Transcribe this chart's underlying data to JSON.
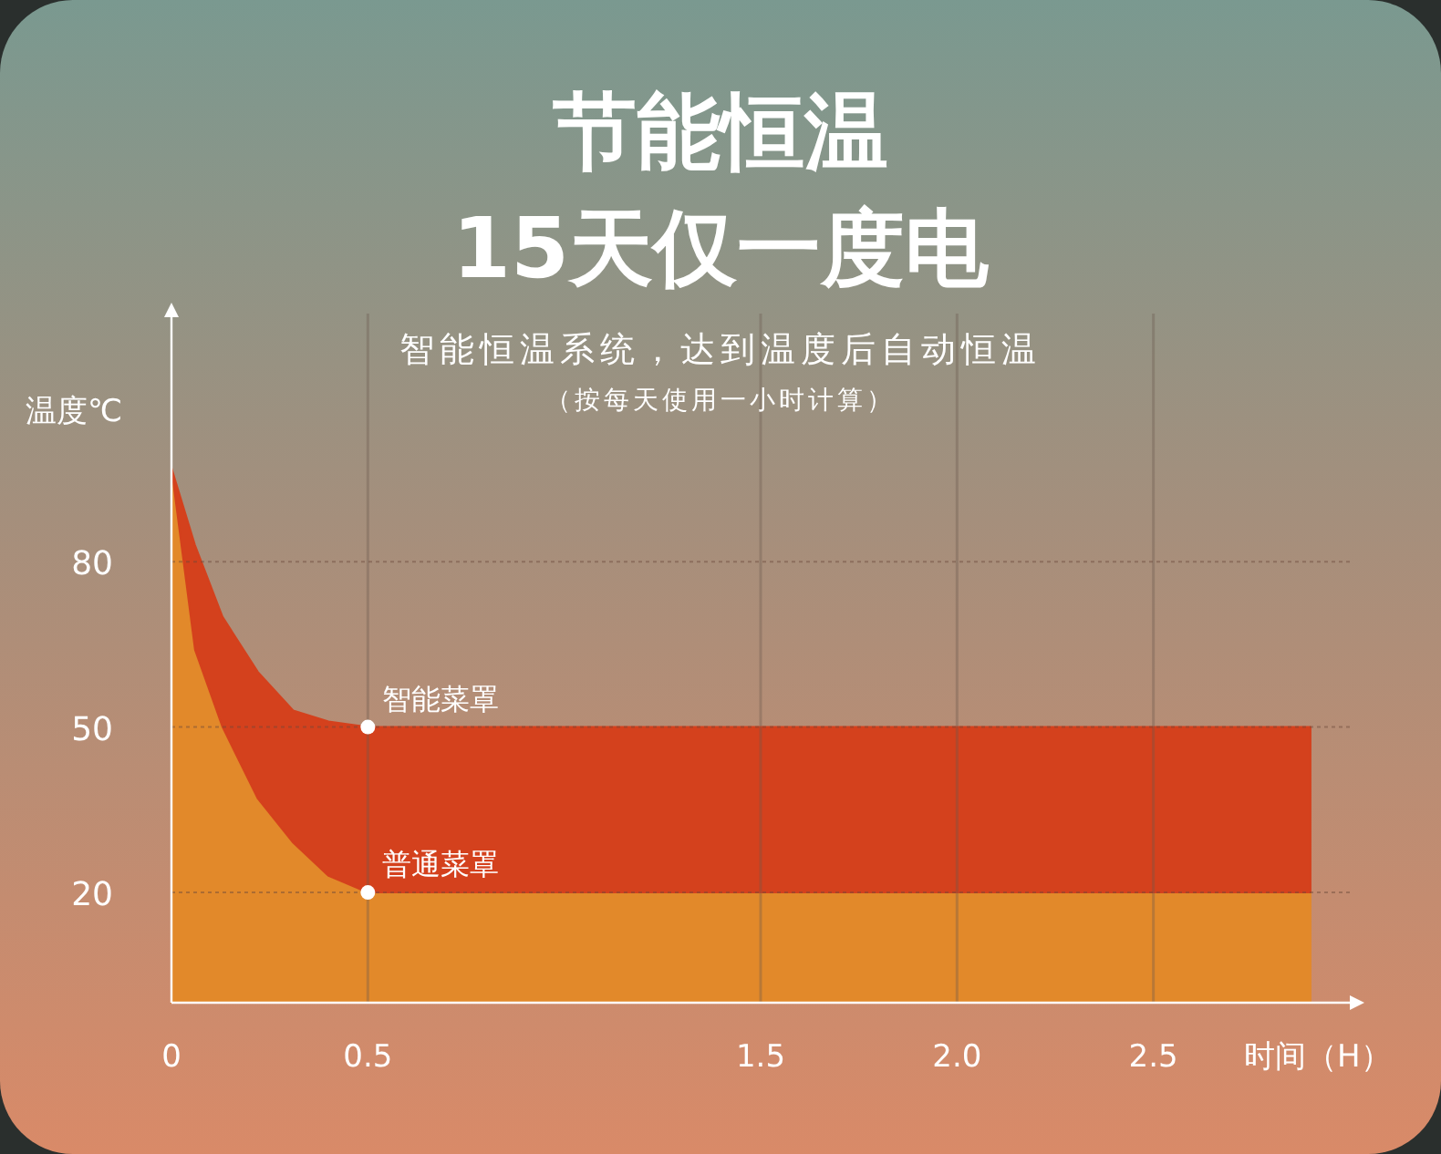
{
  "chart_data": {
    "type": "area",
    "title": "节能恒温\n15天仅一度电",
    "subtitle": "智能恒温系统，达到温度后自动恒温",
    "xlabel": "时间（H）",
    "ylabel": "温度℃",
    "annotations": [
      "（按每天使用一小时计算）",
      {
        "text": "智能菜罩",
        "x": 0.5,
        "y": 50
      },
      {
        "text": "普通菜罩",
        "x": 0.5,
        "y": 20
      }
    ],
    "series": [
      {
        "color": "#e2892a",
        "x": [
          0,
          0.06,
          0.13,
          0.22,
          0.31,
          0.4,
          0.5,
          2.9
        ],
        "values": [
          97,
          64,
          50,
          37,
          29,
          23,
          20,
          20
        ]
      },
      {
        "color": "#d4411d",
        "x": [
          0,
          0.06,
          0.13,
          0.22,
          0.31,
          0.4,
          0.5,
          2.9
        ],
        "values": [
          0,
          19,
          20,
          23,
          24,
          28,
          30,
          30
        ]
      }
    ],
    "stacked": true,
    "xlim": [
      0,
      3
    ],
    "ylim": [
      0,
      125
    ],
    "xticks": [
      0,
      0.5,
      1.5,
      {
        "value": 2,
        "label": "2.0"
      },
      2.5
    ],
    "yticks": [
      80,
      50,
      20
    ],
    "grid": true
  }
}
